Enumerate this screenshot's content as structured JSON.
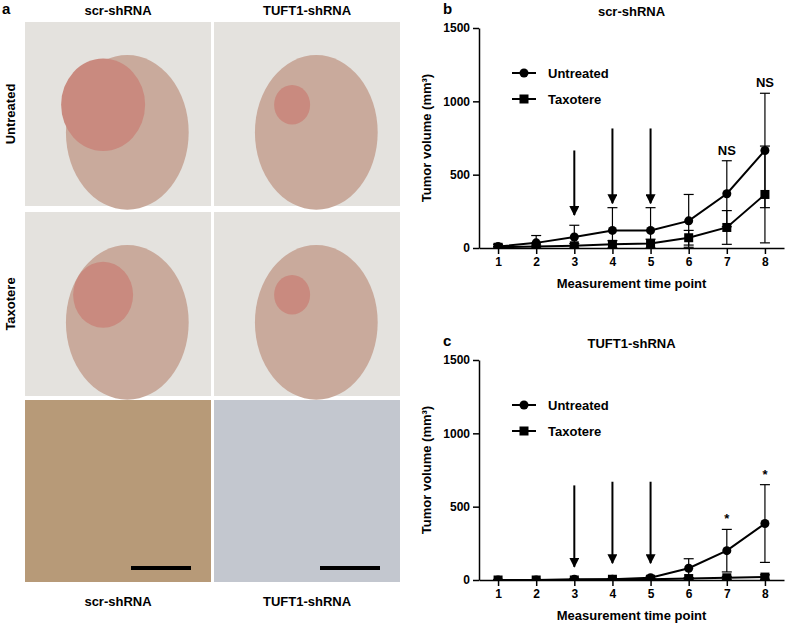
{
  "panel_a": {
    "label": "a",
    "columns": [
      "scr-shRNA",
      "TUFT1-shRNA"
    ],
    "rows": [
      "Untreated",
      "Taxotere"
    ],
    "bottom_labels": [
      "scr-shRNA",
      "TUFT1-shRNA"
    ]
  },
  "chart_data": [
    {
      "type": "line",
      "label": "b",
      "title": "scr-shRNA",
      "x_label": "Measurement time point",
      "y_label": "Tumor volume (mm³)",
      "x": [
        1,
        2,
        3,
        4,
        5,
        6,
        7,
        8
      ],
      "xlim": [
        0.5,
        8.5
      ],
      "xticks": [
        1,
        2,
        3,
        4,
        5,
        6,
        7,
        8
      ],
      "ylim": [
        0,
        1500
      ],
      "yticks": [
        0,
        500,
        1000,
        1500
      ],
      "legend": "upper left",
      "series": [
        {
          "name": "Untreated",
          "color": "#000000",
          "marker": "circle",
          "values": [
            10,
            35,
            75,
            120,
            120,
            185,
            370,
            665
          ],
          "errors": [
            15,
            50,
            80,
            155,
            155,
            180,
            225,
            390
          ]
        },
        {
          "name": "Taxotere",
          "color": "#000000",
          "marker": "square",
          "values": [
            5,
            10,
            15,
            25,
            30,
            70,
            140,
            365
          ],
          "errors": [
            5,
            10,
            15,
            25,
            30,
            50,
            115,
            330
          ]
        }
      ],
      "arrows": [
        {
          "x": 3,
          "y_from": 665,
          "y_to": 225
        },
        {
          "x": 4,
          "y_from": 815,
          "y_to": 305
        },
        {
          "x": 5,
          "y_from": 815,
          "y_to": 305
        }
      ],
      "annotations": [
        {
          "x": 7,
          "text": "NS"
        },
        {
          "x": 8,
          "text": "NS"
        }
      ]
    },
    {
      "type": "line",
      "label": "c",
      "title": "TUFT1-shRNA",
      "x_label": "Measurement time point",
      "y_label": "Tumor volume (mm³)",
      "x": [
        1,
        2,
        3,
        4,
        5,
        6,
        7,
        8
      ],
      "xlim": [
        0.5,
        8.5
      ],
      "xticks": [
        1,
        2,
        3,
        4,
        5,
        6,
        7,
        8
      ],
      "ylim": [
        0,
        1500
      ],
      "yticks": [
        0,
        500,
        1000,
        1500
      ],
      "legend": "upper left",
      "series": [
        {
          "name": "Untreated",
          "color": "#000000",
          "marker": "circle",
          "values": [
            0,
            0,
            5,
            5,
            15,
            80,
            200,
            385
          ],
          "errors": [
            0,
            0,
            5,
            5,
            10,
            65,
            145,
            265
          ]
        },
        {
          "name": "Taxotere",
          "color": "#000000",
          "marker": "square",
          "values": [
            0,
            0,
            0,
            5,
            5,
            10,
            15,
            20
          ],
          "errors": [
            0,
            0,
            0,
            3,
            5,
            5,
            10,
            15
          ]
        }
      ],
      "arrows": [
        {
          "x": 3,
          "y_from": 645,
          "y_to": 90
        },
        {
          "x": 4,
          "y_from": 670,
          "y_to": 115
        },
        {
          "x": 5,
          "y_from": 670,
          "y_to": 115
        }
      ],
      "annotations": [
        {
          "x": 7,
          "text": "*"
        },
        {
          "x": 8,
          "text": "*"
        }
      ]
    }
  ]
}
